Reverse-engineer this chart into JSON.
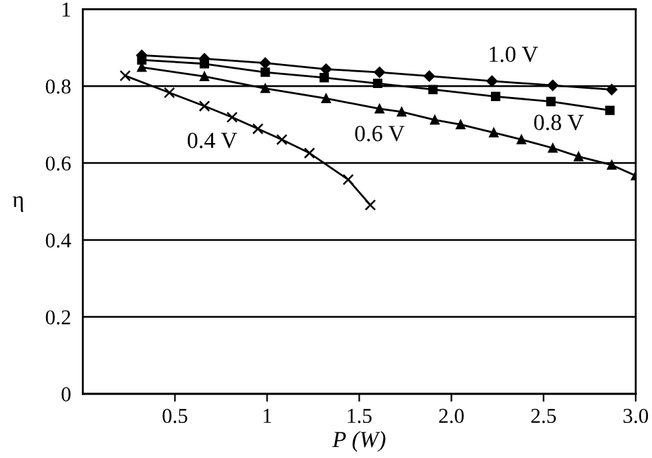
{
  "chart_data": {
    "type": "line",
    "xlabel": "P (W)",
    "ylabel": "η",
    "xlim": [
      0,
      3.0
    ],
    "xticks": [
      0.5,
      1,
      1.5,
      {
        "value": 2,
        "label": "2.0"
      },
      2.5,
      {
        "value": 3,
        "label": "3.0"
      }
    ],
    "ylim": [
      0,
      1
    ],
    "yticks": [
      0,
      0.2,
      0.4,
      0.6,
      0.8,
      1
    ],
    "grid": "y",
    "series": [
      {
        "name": "1.0 V",
        "color": "#000000",
        "marker": "diamond",
        "x": [
          0.32,
          0.66,
          0.99,
          1.32,
          1.61,
          1.88,
          2.22,
          2.55,
          2.87
        ],
        "values": [
          0.88,
          0.871,
          0.86,
          0.844,
          0.836,
          0.826,
          0.813,
          0.802,
          0.791
        ]
      },
      {
        "name": "0.8 V",
        "color": "#000000",
        "marker": "square",
        "x": [
          0.32,
          0.66,
          0.99,
          1.31,
          1.6,
          1.9,
          2.24,
          2.54,
          2.86
        ],
        "values": [
          0.868,
          0.858,
          0.836,
          0.822,
          0.807,
          0.791,
          0.773,
          0.76,
          0.737
        ]
      },
      {
        "name": "0.6 V",
        "color": "#000000",
        "marker": "triangle",
        "x": [
          0.32,
          0.66,
          0.99,
          1.32,
          1.61,
          1.73,
          1.91,
          2.05,
          2.23,
          2.38,
          2.55,
          2.69,
          2.87,
          3.0
        ],
        "values": [
          0.849,
          0.825,
          0.794,
          0.768,
          0.741,
          0.733,
          0.712,
          0.7,
          0.679,
          0.661,
          0.639,
          0.617,
          0.595,
          0.567
        ]
      },
      {
        "name": "0.4 V",
        "color": "#000000",
        "marker": "cross",
        "x": [
          0.23,
          0.47,
          0.66,
          0.81,
          0.95,
          1.08,
          1.23,
          1.44,
          1.56
        ],
        "values": [
          0.827,
          0.783,
          0.748,
          0.719,
          0.689,
          0.661,
          0.626,
          0.557,
          0.491
        ]
      }
    ]
  }
}
